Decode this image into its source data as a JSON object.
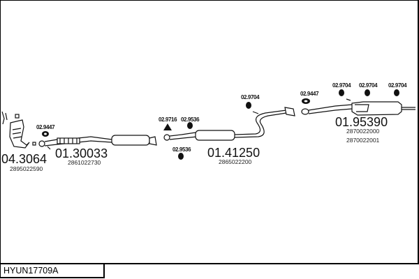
{
  "title": "HYUN17709A",
  "parts": [
    {
      "number": "04.3064",
      "code": "2895022590"
    },
    {
      "number": "01.30033",
      "code": "2861022730"
    },
    {
      "number": "01.41250",
      "code": "2865022200"
    },
    {
      "number": "01.95390",
      "code": "2870022000",
      "code2": "2870022001"
    }
  ],
  "fittings": [
    "02.9447",
    "02.9716",
    "02.9536",
    "02.9536",
    "02.9704",
    "02.9447",
    "02.9704",
    "02.9704",
    "02.9704"
  ]
}
